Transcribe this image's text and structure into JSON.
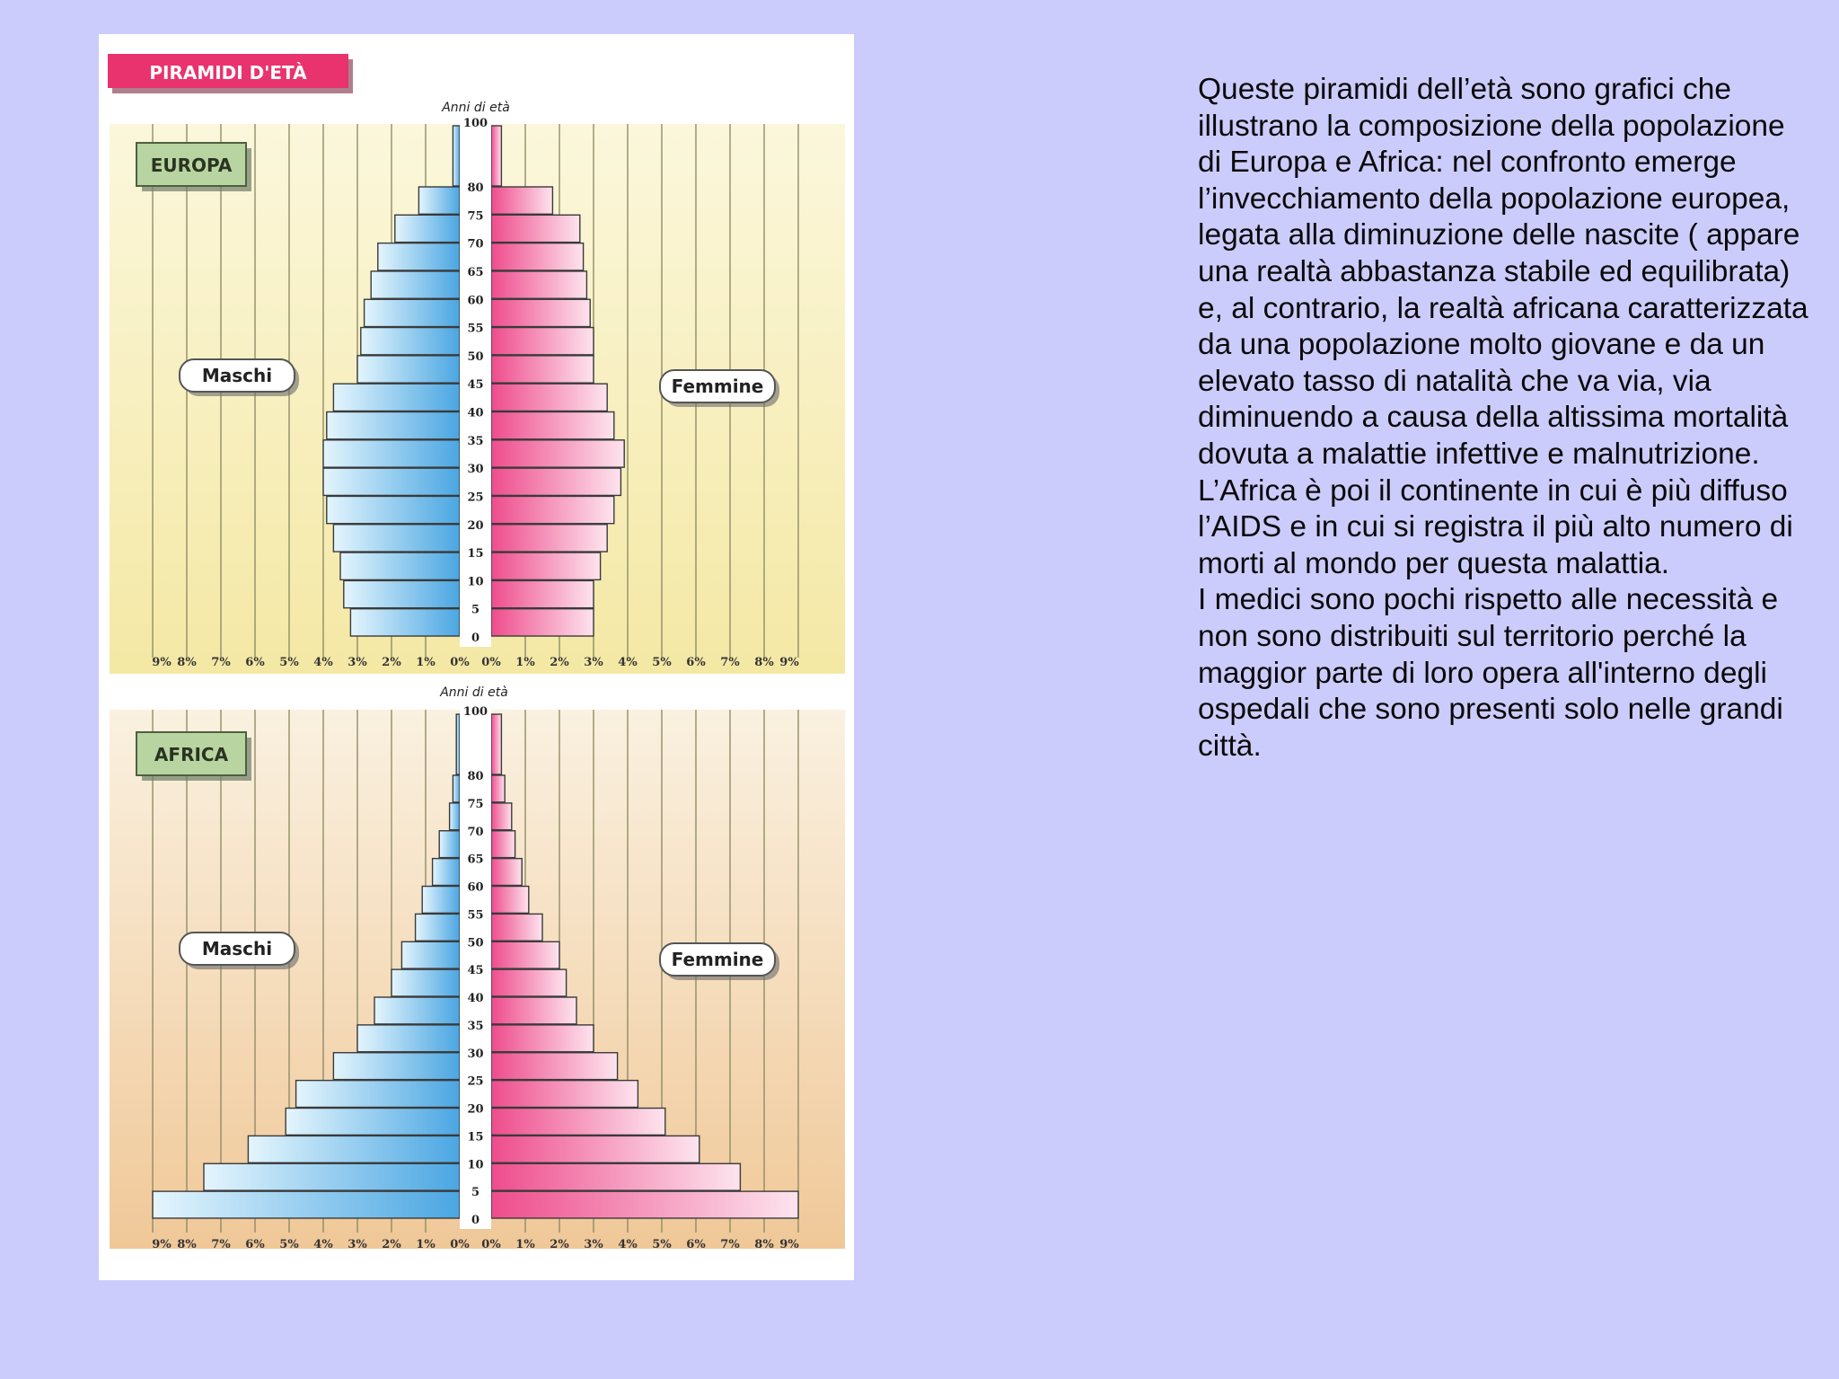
{
  "figure_title": "PIRAMIDI D'ETÀ",
  "text": {
    "paragraph_1": "Queste piramidi dell’età sono grafici che illustrano la composizione della popolazione di Europa e Africa: nel confronto emerge l’invecchiamento della popolazione europea, legata alla diminuzione delle nascite ( appare una realtà abbastanza stabile ed equilibrata) e, al contrario, la realtà africana caratterizzata da una popolazione molto giovane e da un elevato tasso di natalità che va via, via diminuendo a causa della altissima mortalità dovuta a malattie infettive e malnutrizione. L’Africa è poi il continente in cui è più diffuso l’AIDS e in cui si registra il più alto numero di morti al mondo per questa malattia.",
    "paragraph_2": "I medici sono pochi rispetto alle necessità e non sono distribuiti sul territorio perché la maggior parte di loro opera all'interno degli ospedali che sono presenti solo nelle grandi città."
  },
  "colors": {
    "male": "#5aaee6",
    "female": "#f05a96",
    "title_badge": "#e8336f",
    "region_badge": "#b8d4a0",
    "europe_bg": "#f6edb0",
    "africa_bg": "#f2cda0"
  },
  "chart_data": [
    {
      "type": "bar",
      "title": "EUROPA",
      "orientation": "population-pyramid",
      "ylabel": "Anni di età",
      "age_ticks": [
        "100",
        "80",
        "75",
        "70",
        "65",
        "60",
        "55",
        "50",
        "45",
        "40",
        "35",
        "30",
        "25",
        "20",
        "15",
        "10",
        "5",
        "0"
      ],
      "x_ticks": [
        "9%",
        "8%",
        "7%",
        "6%",
        "5%",
        "4%",
        "3%",
        "2%",
        "1%",
        "0%",
        "0%",
        "1%",
        "2%",
        "3%",
        "4%",
        "5%",
        "6%",
        "7%",
        "8%",
        "9%"
      ],
      "xlim": [
        0,
        9
      ],
      "age_groups": [
        "0-5",
        "5-10",
        "10-15",
        "15-20",
        "20-25",
        "25-30",
        "30-35",
        "35-40",
        "40-45",
        "45-50",
        "50-55",
        "55-60",
        "60-65",
        "65-70",
        "70-75",
        "75-80",
        "80-100"
      ],
      "series": [
        {
          "name": "Maschi",
          "values": [
            3.2,
            3.4,
            3.5,
            3.7,
            3.9,
            4.0,
            4.0,
            3.9,
            3.7,
            3.0,
            2.9,
            2.8,
            2.6,
            2.4,
            1.9,
            1.2,
            0.2
          ]
        },
        {
          "name": "Femmine",
          "values": [
            3.0,
            3.0,
            3.2,
            3.4,
            3.6,
            3.8,
            3.9,
            3.6,
            3.4,
            3.0,
            3.0,
            2.9,
            2.8,
            2.7,
            2.6,
            1.8,
            0.3
          ]
        }
      ]
    },
    {
      "type": "bar",
      "title": "AFRICA",
      "orientation": "population-pyramid",
      "ylabel": "Anni di età",
      "age_ticks": [
        "100",
        "80",
        "75",
        "70",
        "65",
        "60",
        "55",
        "50",
        "45",
        "40",
        "35",
        "30",
        "25",
        "20",
        "15",
        "10",
        "5",
        "0"
      ],
      "x_ticks": [
        "9%",
        "8%",
        "7%",
        "6%",
        "5%",
        "4%",
        "3%",
        "2%",
        "1%",
        "0%",
        "0%",
        "1%",
        "2%",
        "3%",
        "4%",
        "5%",
        "6%",
        "7%",
        "8%",
        "9%"
      ],
      "xlim": [
        0,
        9
      ],
      "age_groups": [
        "0-5",
        "5-10",
        "10-15",
        "15-20",
        "20-25",
        "25-30",
        "30-35",
        "35-40",
        "40-45",
        "45-50",
        "50-55",
        "55-60",
        "60-65",
        "65-70",
        "70-75",
        "75-80",
        "80-100"
      ],
      "series": [
        {
          "name": "Maschi",
          "values": [
            9.0,
            7.5,
            6.2,
            5.1,
            4.8,
            3.7,
            3.0,
            2.5,
            2.0,
            1.7,
            1.3,
            1.1,
            0.8,
            0.6,
            0.3,
            0.2,
            0.1
          ]
        },
        {
          "name": "Femmine",
          "values": [
            9.0,
            7.3,
            6.1,
            5.1,
            4.3,
            3.7,
            3.0,
            2.5,
            2.2,
            2.0,
            1.5,
            1.1,
            0.9,
            0.7,
            0.6,
            0.4,
            0.3
          ]
        }
      ]
    }
  ]
}
